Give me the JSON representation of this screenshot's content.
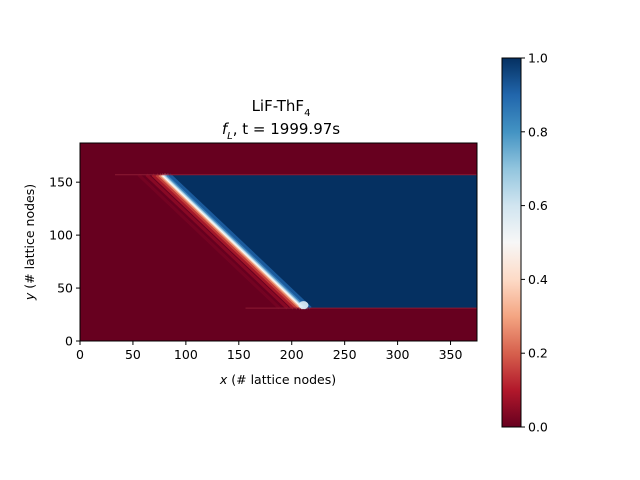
{
  "chart_data": {
    "type": "heatmap",
    "title": {
      "line1_main": "LiF-ThF",
      "line1_sub": "4",
      "line2_f": "f",
      "line2_f_sub": "L",
      "line2_rest": ", t = 1999.97s"
    },
    "xlabel": {
      "var": "x",
      "text": " (# lattice nodes)"
    },
    "ylabel": {
      "var": "y",
      "text": " (# lattice nodes)"
    },
    "xlim": [
      0,
      375
    ],
    "ylim": [
      0,
      187
    ],
    "x_ticks": [
      "0",
      "50",
      "100",
      "150",
      "200",
      "250",
      "300",
      "350"
    ],
    "x_tick_values": [
      0,
      50,
      100,
      150,
      200,
      250,
      300,
      350
    ],
    "y_ticks": [
      "0",
      "50",
      "100",
      "150"
    ],
    "y_tick_values": [
      0,
      50,
      100,
      150
    ],
    "colorbar": {
      "colormap": "RdBu",
      "vmin": 0.0,
      "vmax": 1.0,
      "ticks": [
        "0.0",
        "0.2",
        "0.4",
        "0.6",
        "0.8",
        "1.0"
      ],
      "tick_values": [
        0.0,
        0.2,
        0.4,
        0.6,
        0.8,
        1.0
      ]
    },
    "field": {
      "channel_y_range": [
        31,
        157
      ],
      "value_outside_channel": 0.0,
      "interface_top": [
        78,
        157
      ],
      "interface_bottom": [
        213,
        31
      ],
      "value_left_of_interface": 0.0,
      "value_right_of_interface": 1.0
    }
  }
}
